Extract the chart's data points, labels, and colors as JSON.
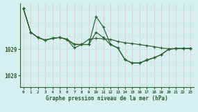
{
  "title": "Graphe pression niveau de la mer (hPa)",
  "bg_color": "#d6efef",
  "grid_color_v": "#c8e8e8",
  "grid_color_h": "#e8c8c8",
  "line_color": "#2d6030",
  "x_ticks": [
    0,
    1,
    2,
    3,
    4,
    5,
    6,
    7,
    8,
    9,
    10,
    11,
    12,
    13,
    14,
    15,
    16,
    17,
    18,
    19,
    20,
    21,
    22,
    23
  ],
  "ylim": [
    1027.55,
    1030.75
  ],
  "yticks": [
    1028,
    1029
  ],
  "line1": [
    1030.55,
    1029.65,
    1029.45,
    1029.35,
    1029.42,
    1029.45,
    1029.38,
    1029.2,
    1029.18,
    1029.38,
    1029.42,
    1029.4,
    1029.38,
    1029.3,
    1029.25,
    1029.22,
    1029.18,
    1029.14,
    1029.1,
    1029.05,
    1029.02,
    1029.03,
    1029.03,
    1029.03
  ],
  "line2": [
    1030.55,
    1029.65,
    1029.45,
    1029.35,
    1029.42,
    1029.45,
    1029.38,
    1029.18,
    1029.18,
    1029.18,
    1029.65,
    1029.45,
    1029.18,
    1029.05,
    1028.6,
    1028.48,
    1028.48,
    1028.6,
    1028.68,
    1028.8,
    1029.0,
    1029.03,
    1029.03,
    1029.03
  ],
  "line3": [
    1030.55,
    1029.65,
    1029.45,
    1029.35,
    1029.42,
    1029.45,
    1029.38,
    1029.05,
    1029.18,
    1029.18,
    1030.25,
    1029.85,
    1029.18,
    1029.05,
    1028.6,
    1028.48,
    1028.48,
    1028.58,
    1028.68,
    1028.8,
    1029.0,
    1029.03,
    1029.03,
    1029.03
  ]
}
